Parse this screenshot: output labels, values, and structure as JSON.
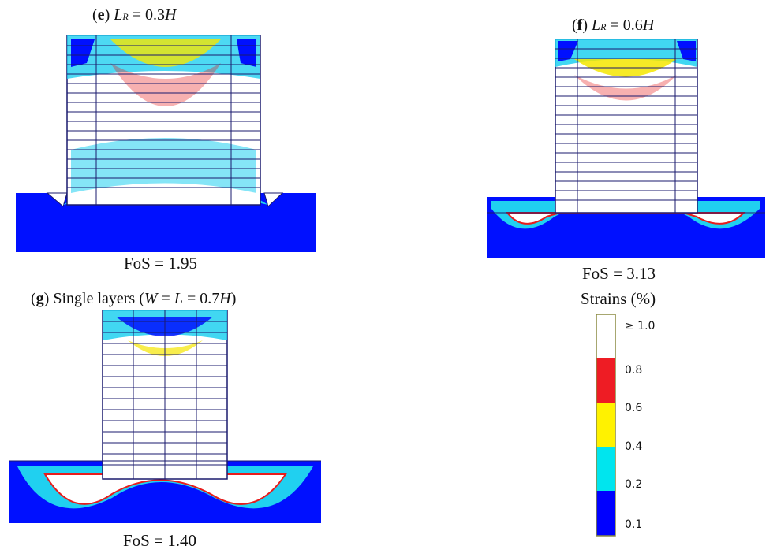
{
  "panels": {
    "e": {
      "letter": "e",
      "lr_symbol": "L",
      "lr_sub": "R",
      "lr_value": " = 0.3",
      "lr_h": "H",
      "fos": "FoS = 1.95"
    },
    "f": {
      "letter": "f",
      "lr_symbol": "L",
      "lr_sub": "R",
      "lr_value": " = 0.6",
      "lr_h": "H",
      "fos": "FoS = 3.13"
    },
    "g": {
      "letter": "g",
      "text": " Single layers (",
      "w": "W",
      "eq": " = ",
      "l": "L",
      "value": " = 0.7",
      "h": "H",
      "close": ")",
      "fos": "FoS = 1.40"
    }
  },
  "legend": {
    "title": "Strains (%)",
    "labels": [
      "≥ 1.0",
      "0.8",
      "0.6",
      "0.4",
      "0.2",
      "0.1"
    ],
    "colors": [
      "#ffffff",
      "#ee1c24",
      "#fff200",
      "#00e5ee",
      "#0000ff"
    ]
  },
  "colors": {
    "soil": "#0010ff",
    "mesh": "#1a1a6e",
    "cyan": "#20d0f0",
    "yellow": "#f5e600",
    "red": "#e81c1c"
  }
}
